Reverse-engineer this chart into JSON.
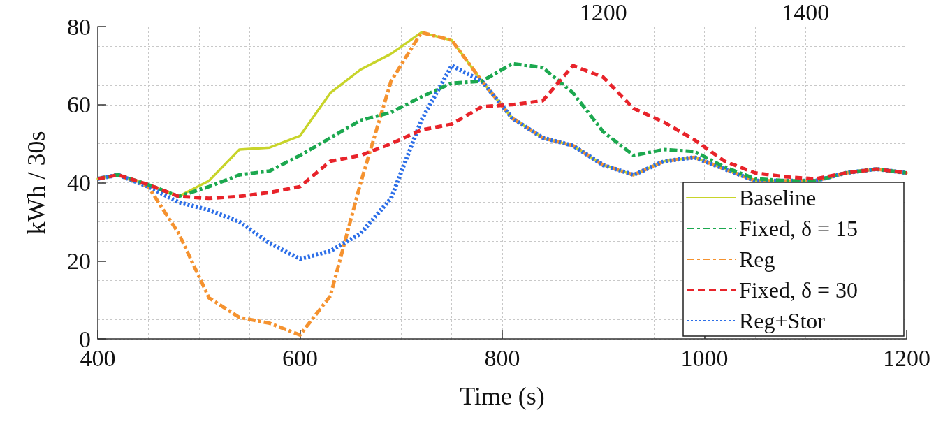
{
  "chart_data": {
    "type": "line",
    "xlabel": "Time (s)",
    "ylabel": "kWh / 30s",
    "x": [
      400,
      420,
      450,
      480,
      510,
      540,
      570,
      600,
      630,
      660,
      690,
      720,
      750,
      780,
      810,
      840,
      870,
      900,
      930,
      960,
      990,
      1020,
      1050,
      1080,
      1110,
      1140,
      1170,
      1200
    ],
    "series": [
      {
        "name": "Baseline",
        "color": "#c8d42a",
        "line_style": "solid",
        "values": [
          41,
          42,
          39.5,
          36.5,
          40.5,
          48.5,
          49,
          52,
          63,
          69,
          73,
          78.5,
          76.5,
          66,
          56.5,
          51.5,
          49.5,
          44.5,
          42,
          45.5,
          46.5,
          43.5,
          40.5,
          40.5,
          40.5,
          42.5,
          43.5,
          42.5
        ]
      },
      {
        "name": "Reg",
        "color": "#f5922f",
        "line_style": "dashdot",
        "values": [
          41,
          42,
          39,
          27,
          10.5,
          5.5,
          4,
          1,
          11,
          40,
          66,
          78.5,
          76.5,
          66,
          56.5,
          51.5,
          49.5,
          44.5,
          42,
          45.5,
          46.5,
          43.5,
          40.5,
          40.5,
          40.5,
          42.5,
          43.5,
          42.5
        ]
      },
      {
        "name": "Reg+Stor",
        "color": "#2d6fe8",
        "line_style": "dotted",
        "values": [
          41,
          42,
          39,
          35,
          33,
          30,
          24.5,
          20.5,
          22.5,
          27,
          36,
          56,
          70,
          66,
          56.5,
          51.5,
          49.5,
          44.5,
          42,
          45.5,
          46.5,
          43.5,
          40.5,
          40.5,
          40.5,
          42.5,
          43.5,
          42.5
        ]
      },
      {
        "name": "Fixed, δ = 15",
        "color": "#1ca84f",
        "line_style": "dashdot",
        "values": [
          41,
          42,
          39.5,
          36.5,
          39,
          42,
          43,
          47,
          51.5,
          56,
          58,
          62,
          65.5,
          66,
          70.5,
          69.5,
          63,
          53,
          47,
          48.5,
          48,
          44,
          41,
          40.5,
          40.5,
          42.5,
          43.5,
          42.5
        ]
      },
      {
        "name": "Fixed, δ = 30",
        "color": "#e8232a",
        "line_style": "dashed",
        "values": [
          41,
          42,
          39.5,
          36.5,
          36,
          36.5,
          37.5,
          39,
          45.5,
          47,
          50,
          53.5,
          55,
          59.5,
          60,
          61,
          70,
          67,
          59,
          55.5,
          51,
          45.5,
          42.5,
          41.5,
          41,
          42.5,
          43.5,
          42.5
        ]
      }
    ],
    "xlim": [
      400,
      1200
    ],
    "xticks": [
      400,
      600,
      800,
      1000,
      1200
    ],
    "ylim": [
      0,
      80
    ],
    "yticks": [
      0,
      20,
      40,
      60,
      80
    ],
    "x2lim": [
      700,
      1500
    ],
    "x2ticks": [
      1200,
      1400
    ],
    "grid": true,
    "legend": "bottom right",
    "marker": "none"
  }
}
